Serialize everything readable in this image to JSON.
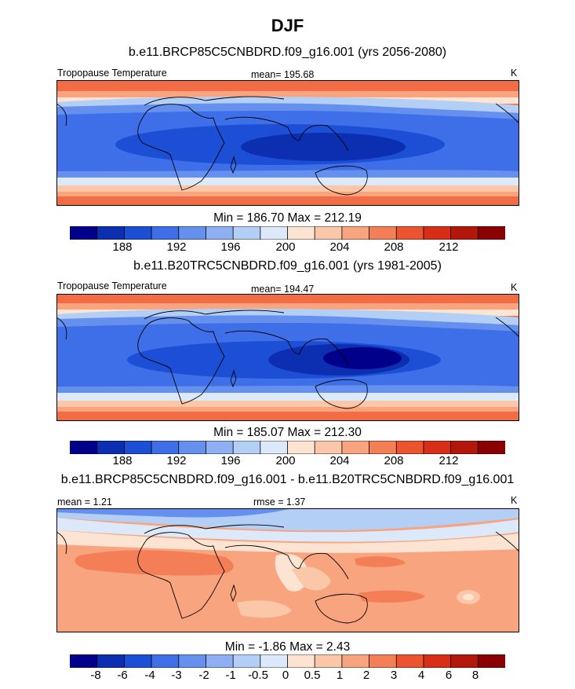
{
  "figure": {
    "title": "DJF"
  },
  "panels": [
    {
      "id": "future",
      "subtitle": "b.e11.BRCP85C5CNBDRD.f09_g16.001 (yrs 2056-2080)",
      "left_label": "Tropopause Temperature",
      "center_label": "mean= 195.68",
      "right_label": "K",
      "minmax": "Min = 186.70 Max = 212.19"
    },
    {
      "id": "historical",
      "subtitle": "b.e11.B20TRC5CNBDRD.f09_g16.001 (yrs 1981-2005)",
      "left_label": "Tropopause Temperature",
      "center_label": "mean= 194.47",
      "right_label": "K",
      "minmax": "Min = 185.07 Max = 212.30"
    },
    {
      "id": "difference",
      "subtitle": "b.e11.BRCP85C5CNBDRD.f09_g16.001 - b.e11.B20TRC5CNBDRD.f09_g16.001",
      "left_label": "mean =   1.21",
      "center_label": "rmse =   1.37",
      "right_label": "K",
      "minmax": "Min =  -1.86 Max =   2.43"
    }
  ],
  "chart_data": [
    {
      "type": "heatmap",
      "title": "b.e11.BRCP85C5CNBDRD.f09_g16.001 (yrs 2056-2080)",
      "variable": "Tropopause Temperature",
      "units": "K",
      "mean": 195.68,
      "min": 186.7,
      "max": 212.19,
      "tick_labels": [
        "188",
        "192",
        "196",
        "200",
        "204",
        "208",
        "212"
      ],
      "levels": [
        186,
        188,
        190,
        192,
        194,
        196,
        198,
        200,
        202,
        204,
        206,
        208,
        210,
        212
      ]
    },
    {
      "type": "heatmap",
      "title": "b.e11.B20TRC5CNBDRD.f09_g16.001 (yrs 1981-2005)",
      "variable": "Tropopause Temperature",
      "units": "K",
      "mean": 194.47,
      "min": 185.07,
      "max": 212.3,
      "tick_labels": [
        "188",
        "192",
        "196",
        "200",
        "204",
        "208",
        "212"
      ],
      "levels": [
        186,
        188,
        190,
        192,
        194,
        196,
        198,
        200,
        202,
        204,
        206,
        208,
        210,
        212
      ]
    },
    {
      "type": "heatmap",
      "title": "b.e11.BRCP85C5CNBDRD.f09_g16.001 - b.e11.B20TRC5CNBDRD.f09_g16.001",
      "units": "K",
      "mean": 1.21,
      "rmse": 1.37,
      "min": -1.86,
      "max": 2.43,
      "tick_labels": [
        "-8",
        "-6",
        "-4",
        "-3",
        "-2",
        "-1",
        "-0.5",
        "0",
        "0.5",
        "1",
        "2",
        "3",
        "4",
        "6",
        "8"
      ],
      "levels": [
        -8,
        -6,
        -4,
        -3,
        -2,
        -1,
        -0.5,
        0,
        0.5,
        1,
        2,
        3,
        4,
        6,
        8
      ]
    }
  ],
  "colormap": [
    "#00008b",
    "#0c2fb2",
    "#1c4fd6",
    "#3f6fe8",
    "#6690ee",
    "#8eb0f2",
    "#b4cff6",
    "#dce9fb",
    "#fde4d2",
    "#fbc7a9",
    "#f8a47e",
    "#f47e55",
    "#ec5430",
    "#d82e17",
    "#b3170c",
    "#8b0000"
  ]
}
